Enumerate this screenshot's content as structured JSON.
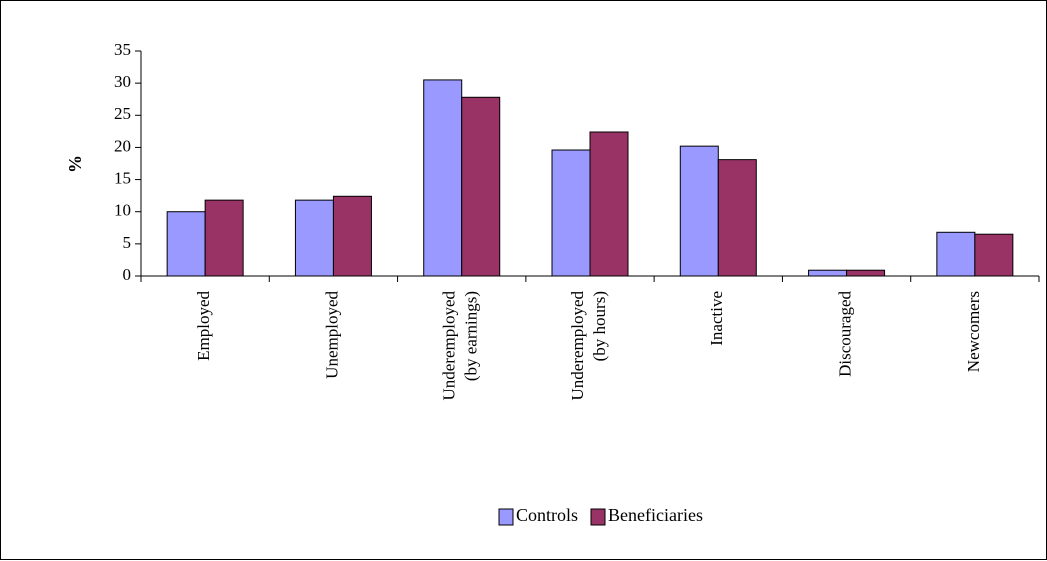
{
  "chart_data": {
    "type": "bar",
    "title": "",
    "xlabel": "",
    "ylabel": "%",
    "ylim": [
      0,
      35
    ],
    "yticks": [
      0,
      5,
      10,
      15,
      20,
      25,
      30,
      35
    ],
    "grid": false,
    "legend_position": "bottom",
    "categories": [
      [
        "Employed"
      ],
      [
        "Unemployed"
      ],
      [
        "Underemployed",
        "(by earnings)"
      ],
      [
        "Underemployed",
        "(by hours)"
      ],
      [
        "Inactive"
      ],
      [
        "Discouraged"
      ],
      [
        "Newcomers"
      ]
    ],
    "series": [
      {
        "name": "Controls",
        "color": "#9999ff",
        "values": [
          10,
          11.8,
          30.5,
          19.6,
          20.2,
          0.9,
          6.8
        ]
      },
      {
        "name": "Beneficiaries",
        "color": "#993366",
        "values": [
          11.8,
          12.4,
          27.8,
          22.4,
          18.1,
          0.9,
          6.5
        ]
      }
    ]
  }
}
